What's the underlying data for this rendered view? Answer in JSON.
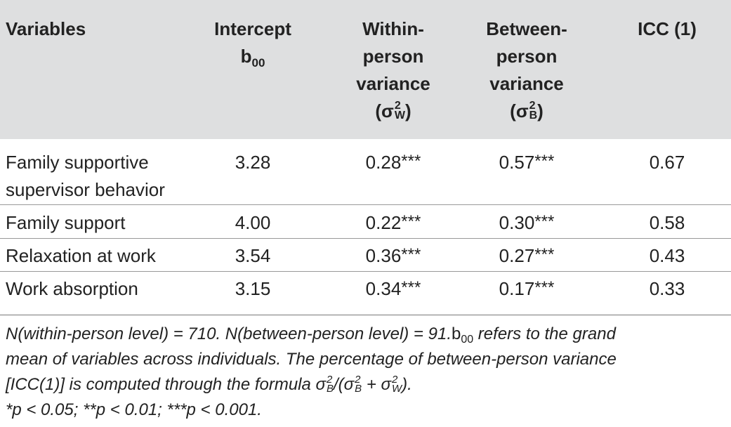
{
  "table": {
    "headers": {
      "variables": "Variables",
      "intercept_l1": "Intercept",
      "intercept_l2": "b",
      "intercept_sub": "00",
      "within_l1": "Within-",
      "within_l2": "person",
      "within_l3": "variance",
      "within_sigma_open": "(σ",
      "within_sigma_sup": "2",
      "within_sigma_sub": "W",
      "within_sigma_close": ")",
      "between_l1": "Between-",
      "between_l2": "person",
      "between_l3": "variance",
      "between_sigma_open": "(σ",
      "between_sigma_sup": "2",
      "between_sigma_sub": "B",
      "between_sigma_close": ")",
      "icc": "ICC (1)"
    },
    "rows": [
      {
        "variable_l1": "Family supportive",
        "variable_l2": "supervisor behavior",
        "intercept": "3.28",
        "within": "0.28",
        "within_sig": "***",
        "between": "0.57",
        "between_sig": "***",
        "icc": "0.67"
      },
      {
        "variable_l1": "Family support",
        "intercept": "4.00",
        "within": "0.22",
        "within_sig": "***",
        "between": "0.30",
        "between_sig": "***",
        "icc": "0.58"
      },
      {
        "variable_l1": "Relaxation at work",
        "intercept": "3.54",
        "within": "0.36",
        "within_sig": "***",
        "between": "0.27",
        "between_sig": "***",
        "icc": "0.43"
      },
      {
        "variable_l1": "Work absorption",
        "intercept": "3.15",
        "within": "0.34",
        "within_sig": "***",
        "between": "0.17",
        "between_sig": "***",
        "icc": "0.33"
      }
    ],
    "notes": {
      "line1_a": "N(within-person level) = 710. N(between-person level) = 91.",
      "line1_b": "b",
      "line1_sub": "00",
      "line1_c": " refers to the grand",
      "line2": "mean of variables across individuals. The percentage of between-person variance",
      "line3_a": "[ICC(1)] is computed through the formula σ",
      "line3_sup1": "2",
      "line3_sub1": "B",
      "line3_b": "/(σ",
      "line3_sup2": "2",
      "line3_sub2": "B",
      "line3_c": " + σ",
      "line3_sup3": "2",
      "line3_sub3": "W",
      "line3_d": ").",
      "line4": "*p < 0.05; **p < 0.01; ***p < 0.001."
    }
  }
}
